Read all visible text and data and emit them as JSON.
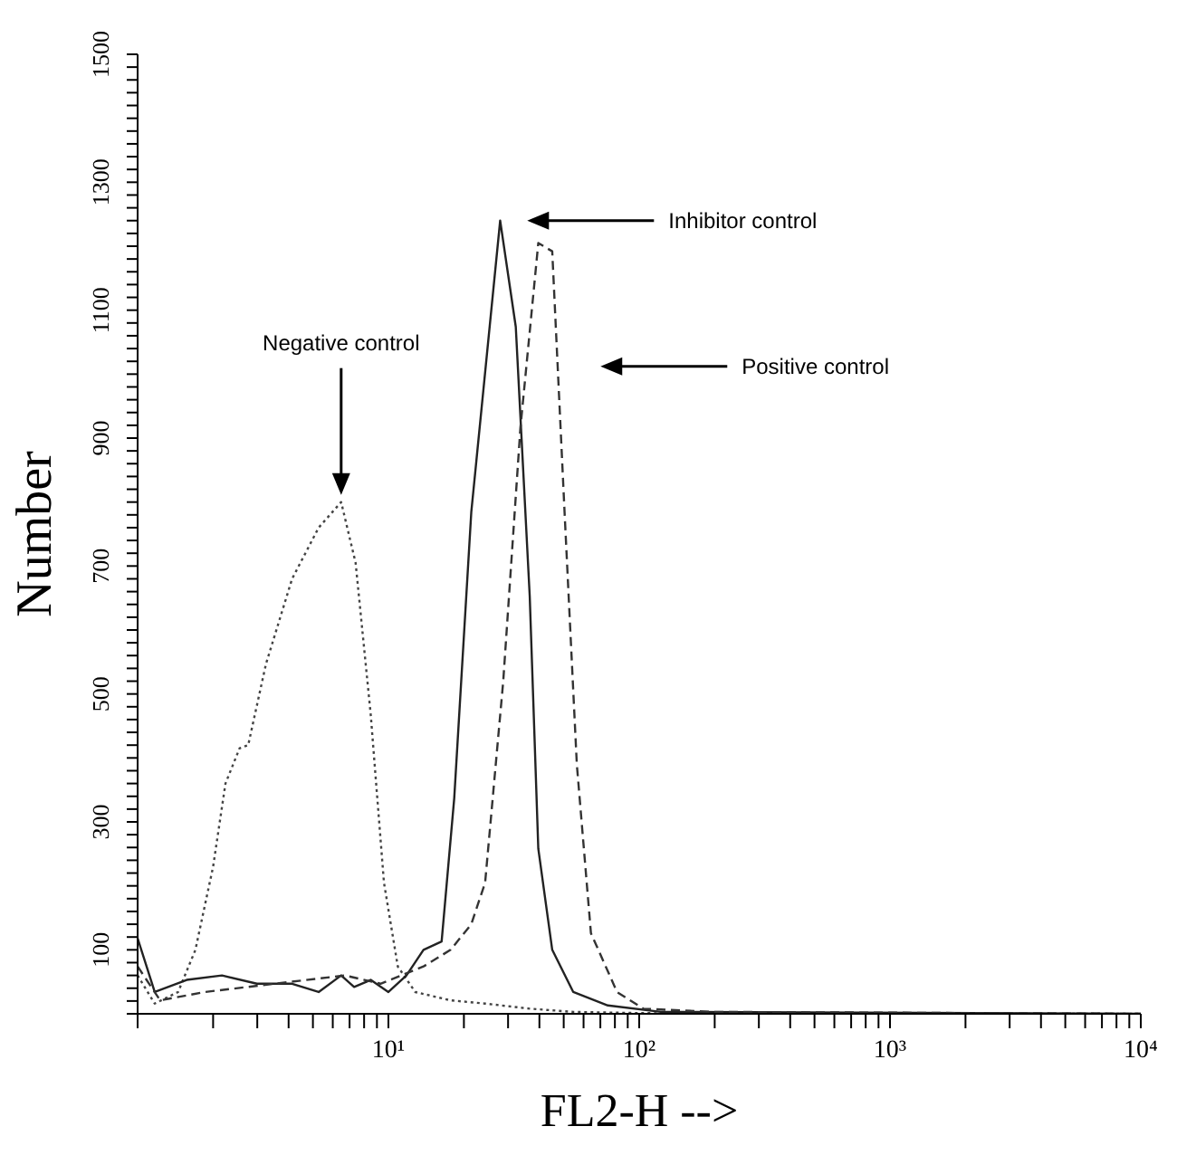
{
  "chart_data": {
    "type": "line",
    "xlabel": "FL2-H -->",
    "ylabel": "Number",
    "log": "x",
    "marker": "none",
    "xlim": [
      1,
      10000
    ],
    "ylim": [
      0,
      1500
    ],
    "xticks": [
      {
        "value": 1,
        "label": null
      },
      {
        "value": 2,
        "label": null
      },
      {
        "value": 3,
        "label": null
      },
      {
        "value": 4,
        "label": null
      },
      {
        "value": 5,
        "label": null
      },
      {
        "value": 6,
        "label": null
      },
      {
        "value": 7,
        "label": null
      },
      {
        "value": 8,
        "label": null
      },
      {
        "value": 9,
        "label": null
      },
      {
        "value": 10,
        "label": "10¹"
      },
      {
        "value": 20,
        "label": null
      },
      {
        "value": 30,
        "label": null
      },
      {
        "value": 40,
        "label": null
      },
      {
        "value": 50,
        "label": null
      },
      {
        "value": 60,
        "label": null
      },
      {
        "value": 70,
        "label": null
      },
      {
        "value": 80,
        "label": null
      },
      {
        "value": 90,
        "label": null
      },
      {
        "value": 100,
        "label": "10²"
      },
      {
        "value": 200,
        "label": null
      },
      {
        "value": 300,
        "label": null
      },
      {
        "value": 400,
        "label": null
      },
      {
        "value": 500,
        "label": null
      },
      {
        "value": 600,
        "label": null
      },
      {
        "value": 700,
        "label": null
      },
      {
        "value": 800,
        "label": null
      },
      {
        "value": 900,
        "label": null
      },
      {
        "value": 1000,
        "label": "10³"
      },
      {
        "value": 2000,
        "label": null
      },
      {
        "value": 3000,
        "label": null
      },
      {
        "value": 4000,
        "label": null
      },
      {
        "value": 5000,
        "label": null
      },
      {
        "value": 6000,
        "label": null
      },
      {
        "value": 7000,
        "label": null
      },
      {
        "value": 8000,
        "label": null
      },
      {
        "value": 9000,
        "label": null
      },
      {
        "value": 10000,
        "label": "10⁴"
      }
    ],
    "yticks": [
      {
        "value": 0,
        "label": null
      },
      {
        "value": 20,
        "label": null
      },
      {
        "value": 40,
        "label": null
      },
      {
        "value": 60,
        "label": null
      },
      {
        "value": 80,
        "label": null
      },
      100,
      {
        "value": 120,
        "label": null
      },
      {
        "value": 140,
        "label": null
      },
      {
        "value": 160,
        "label": null
      },
      {
        "value": 180,
        "label": null
      },
      {
        "value": 200,
        "label": null
      },
      {
        "value": 220,
        "label": null
      },
      {
        "value": 240,
        "label": null
      },
      {
        "value": 260,
        "label": null
      },
      {
        "value": 280,
        "label": null
      },
      300,
      {
        "value": 320,
        "label": null
      },
      {
        "value": 340,
        "label": null
      },
      {
        "value": 360,
        "label": null
      },
      {
        "value": 380,
        "label": null
      },
      {
        "value": 400,
        "label": null
      },
      {
        "value": 420,
        "label": null
      },
      {
        "value": 440,
        "label": null
      },
      {
        "value": 460,
        "label": null
      },
      {
        "value": 480,
        "label": null
      },
      500,
      {
        "value": 520,
        "label": null
      },
      {
        "value": 540,
        "label": null
      },
      {
        "value": 560,
        "label": null
      },
      {
        "value": 580,
        "label": null
      },
      {
        "value": 600,
        "label": null
      },
      {
        "value": 620,
        "label": null
      },
      {
        "value": 640,
        "label": null
      },
      {
        "value": 660,
        "label": null
      },
      {
        "value": 680,
        "label": null
      },
      700,
      {
        "value": 720,
        "label": null
      },
      {
        "value": 740,
        "label": null
      },
      {
        "value": 760,
        "label": null
      },
      {
        "value": 780,
        "label": null
      },
      {
        "value": 800,
        "label": null
      },
      {
        "value": 820,
        "label": null
      },
      {
        "value": 840,
        "label": null
      },
      {
        "value": 860,
        "label": null
      },
      {
        "value": 880,
        "label": null
      },
      900,
      {
        "value": 920,
        "label": null
      },
      {
        "value": 940,
        "label": null
      },
      {
        "value": 960,
        "label": null
      },
      {
        "value": 980,
        "label": null
      },
      {
        "value": 1000,
        "label": null
      },
      {
        "value": 1020,
        "label": null
      },
      {
        "value": 1040,
        "label": null
      },
      {
        "value": 1060,
        "label": null
      },
      {
        "value": 1080,
        "label": null
      },
      1100,
      {
        "value": 1120,
        "label": null
      },
      {
        "value": 1140,
        "label": null
      },
      {
        "value": 1160,
        "label": null
      },
      {
        "value": 1180,
        "label": null
      },
      {
        "value": 1200,
        "label": null
      },
      {
        "value": 1220,
        "label": null
      },
      {
        "value": 1240,
        "label": null
      },
      {
        "value": 1260,
        "label": null
      },
      {
        "value": 1280,
        "label": null
      },
      1300,
      {
        "value": 1320,
        "label": null
      },
      {
        "value": 1340,
        "label": null
      },
      {
        "value": 1360,
        "label": null
      },
      {
        "value": 1380,
        "label": null
      },
      {
        "value": 1400,
        "label": null
      },
      {
        "value": 1420,
        "label": null
      },
      {
        "value": 1440,
        "label": null
      },
      {
        "value": 1460,
        "label": null
      },
      {
        "value": 1480,
        "label": null
      },
      1500
    ],
    "series": [
      {
        "color": "#444444",
        "line_style": "dotted",
        "x": [
          1,
          1.17,
          1.45,
          1.7,
          2,
          2.24,
          2.55,
          2.76,
          3.25,
          4.13,
          5.27,
          6.48,
          7.4,
          8.5,
          9.6,
          10.9,
          12.8,
          17.7,
          24.3,
          36.6,
          54.6,
          104,
          445,
          10000
        ],
        "values": [
          60,
          16,
          34,
          100,
          230,
          360,
          415,
          420,
          547,
          680,
          760,
          800,
          705,
          468,
          205,
          74,
          34,
          21,
          16,
          8,
          3,
          1,
          0,
          0
        ]
      },
      {
        "color": "#222222",
        "line_style": "solid",
        "x": [
          1,
          1.17,
          1.57,
          2.17,
          2.99,
          4.13,
          5.27,
          6.48,
          7.3,
          8.5,
          10,
          11.8,
          13.8,
          16.3,
          18.3,
          21.4,
          27.9,
          32.2,
          36.6,
          39.6,
          45,
          54.6,
          75,
          122,
          10000
        ],
        "values": [
          118,
          34,
          53,
          60,
          47,
          47,
          34,
          60,
          42,
          53,
          34,
          60,
          100,
          113,
          337,
          784,
          1240,
          1074,
          653,
          258,
          100,
          34,
          13,
          3,
          0
        ]
      },
      {
        "color": "#333333",
        "line_style": "dashed",
        "x": [
          1,
          1.23,
          1.85,
          3.52,
          6.7,
          9.3,
          13.8,
          17.7,
          21.4,
          24.3,
          28.7,
          33.6,
          39.6,
          45,
          50.4,
          56.4,
          64.2,
          81.6,
          104,
          199,
          10000
        ],
        "values": [
          74,
          21,
          34,
          47,
          60,
          47,
          74,
          100,
          140,
          205,
          520,
          916,
          1205,
          1192,
          784,
          390,
          126,
          34,
          8,
          3,
          0
        ]
      }
    ],
    "annotations": [
      "Negative control",
      "Inhibitor control",
      "Positive control"
    ]
  }
}
